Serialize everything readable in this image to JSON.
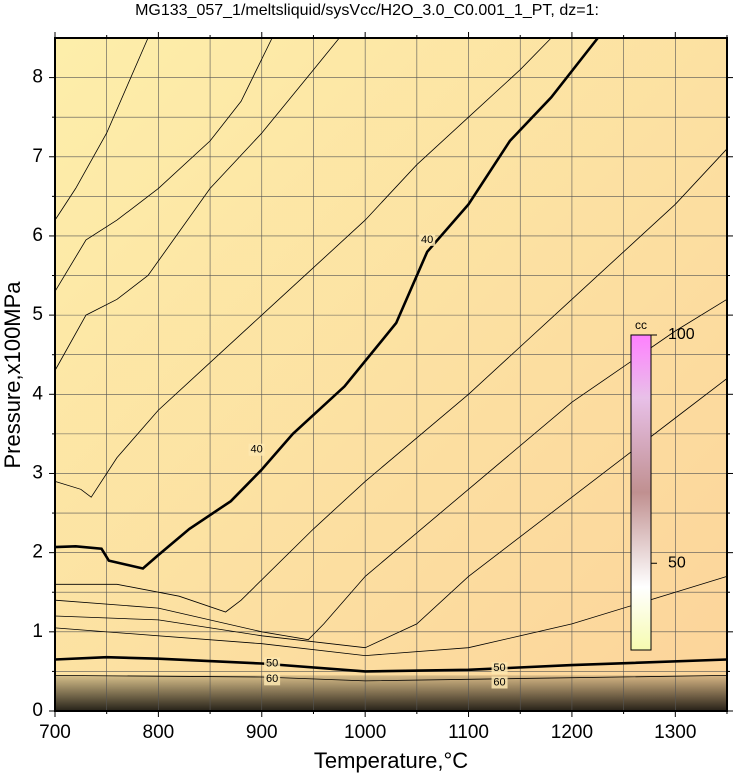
{
  "chart_data": {
    "type": "contour",
    "title": "MG133_057_1/meltsliquid/sysVcc/H2O_3.0_C0.001_1_PT, dz=1:",
    "x_label": "Temperature,°C",
    "y_label": "Pressure,x100MPa",
    "xlim": [
      700,
      1350
    ],
    "ylim": [
      0,
      8.5
    ],
    "xticks": [
      700,
      800,
      900,
      1000,
      1100,
      1200,
      1300
    ],
    "xminorticks": [
      750,
      850,
      950,
      1050,
      1150,
      1250,
      1350
    ],
    "yticks": [
      0,
      1,
      2,
      3,
      4,
      5,
      6,
      7,
      8
    ],
    "yminorticks": [
      0.5,
      1.5,
      2.5,
      3.5,
      4.5,
      5.5,
      6.5,
      7.5
    ],
    "grid": true,
    "colorbar": {
      "label": "cc",
      "lim": [
        31,
        100
      ],
      "ticks": [
        50,
        100
      ]
    },
    "contours": [
      {
        "level": 40,
        "bold": true,
        "label_at": [
          [
            895,
            3.3
          ],
          [
            1060,
            5.95
          ]
        ],
        "x": [
          700,
          720,
          745,
          752,
          785,
          800,
          830,
          870,
          900,
          930,
          980,
          1030,
          1060,
          1100,
          1140,
          1180,
          1225
        ],
        "y": [
          2.07,
          2.08,
          2.05,
          1.9,
          1.8,
          1.97,
          2.3,
          2.65,
          3.05,
          3.5,
          4.1,
          4.9,
          5.8,
          6.4,
          7.2,
          7.75,
          8.5
        ]
      },
      {
        "level": 50,
        "bold": true,
        "label_at": [
          [
            910,
            0.6
          ],
          [
            1130,
            0.54
          ]
        ],
        "x": [
          700,
          750,
          800,
          900,
          1000,
          1100,
          1200,
          1350
        ],
        "y": [
          0.65,
          0.68,
          0.66,
          0.6,
          0.5,
          0.52,
          0.58,
          0.65
        ]
      },
      {
        "level": 60,
        "bold": false,
        "label_at": [
          [
            910,
            0.4
          ],
          [
            1130,
            0.36
          ]
        ],
        "x": [
          700,
          800,
          900,
          1000,
          1100,
          1350
        ],
        "y": [
          0.45,
          0.44,
          0.43,
          0.38,
          0.4,
          0.45
        ]
      },
      {
        "x": [
          700,
          720,
          750,
          790
        ],
        "y": [
          6.2,
          6.6,
          7.3,
          8.5
        ]
      },
      {
        "x": [
          700,
          730,
          760,
          800,
          850,
          880,
          910
        ],
        "y": [
          5.3,
          5.95,
          6.2,
          6.6,
          7.2,
          7.7,
          8.5
        ]
      },
      {
        "x": [
          700,
          730,
          760,
          790,
          850,
          900,
          950,
          975
        ],
        "y": [
          4.3,
          5.0,
          5.2,
          5.5,
          6.6,
          7.3,
          8.1,
          8.5
        ]
      },
      {
        "x": [
          700,
          725,
          735,
          760,
          800,
          850,
          900,
          950,
          1000,
          1050,
          1100,
          1150,
          1180
        ],
        "y": [
          2.9,
          2.8,
          2.7,
          3.2,
          3.8,
          4.4,
          5.0,
          5.6,
          6.2,
          6.9,
          7.5,
          8.1,
          8.5
        ]
      },
      {
        "x": [
          700,
          760,
          820,
          865,
          880,
          950,
          1000,
          1100,
          1200,
          1300,
          1350
        ],
        "y": [
          1.6,
          1.6,
          1.45,
          1.25,
          1.4,
          2.3,
          2.9,
          4.0,
          5.2,
          6.4,
          7.1
        ]
      },
      {
        "x": [
          700,
          800,
          900,
          945,
          960,
          1000,
          1100,
          1200,
          1300,
          1350
        ],
        "y": [
          1.4,
          1.3,
          1.0,
          0.9,
          1.1,
          1.7,
          2.8,
          3.9,
          4.8,
          5.2
        ]
      },
      {
        "x": [
          700,
          800,
          900,
          1000,
          1050,
          1100,
          1200,
          1300,
          1350
        ],
        "y": [
          1.2,
          1.15,
          0.95,
          0.8,
          1.1,
          1.7,
          2.7,
          3.7,
          4.2
        ]
      },
      {
        "x": [
          700,
          900,
          1000,
          1100,
          1200,
          1300,
          1350
        ],
        "y": [
          1.05,
          0.85,
          0.7,
          0.8,
          1.1,
          1.5,
          1.7
        ]
      }
    ]
  }
}
